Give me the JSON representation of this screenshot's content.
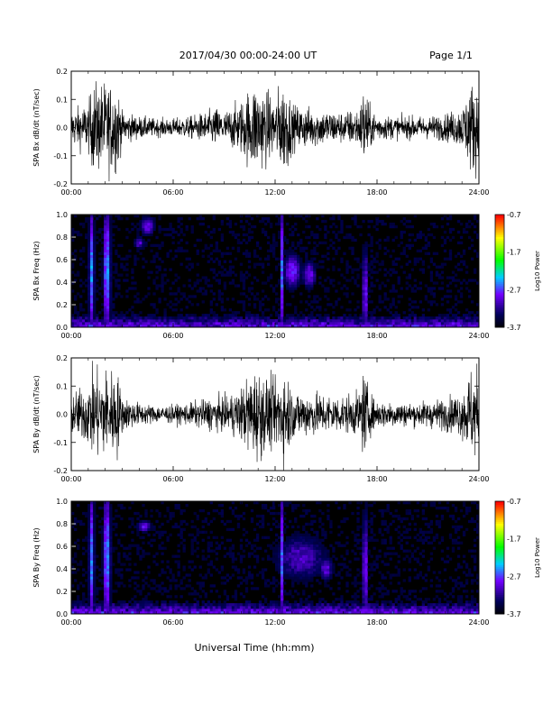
{
  "header": {
    "title": "2017/04/30  00:00-24:00 UT",
    "page": "Page 1/1"
  },
  "xaxis_label": "Universal Time (hh:mm)",
  "chart_data": [
    {
      "type": "line",
      "ylabel": "SPA Bx dB/dt (nT/sec)",
      "xlim": [
        "00:00",
        "24:00"
      ],
      "ylim": [
        -0.2,
        0.2
      ],
      "xticks": [
        "00:00",
        "06:00",
        "12:00",
        "18:00",
        "24:00"
      ],
      "yticks": [
        "0.2",
        "0.1",
        "0.0",
        "-0.1",
        "-0.2"
      ],
      "x_hours": [
        0,
        1,
        1.3,
        2,
        2.7,
        3,
        4,
        5,
        6,
        7,
        8,
        8.5,
        9,
        10,
        10.7,
        11,
        12,
        12.3,
        12.7,
        13,
        14,
        15,
        16,
        17,
        17.2,
        17.6,
        18,
        19,
        20,
        21,
        22,
        23,
        23.5,
        24
      ],
      "envelope": [
        0.08,
        0.11,
        0.2,
        0.2,
        0.2,
        0.07,
        0.05,
        0.04,
        0.04,
        0.05,
        0.07,
        0.09,
        0.07,
        0.12,
        0.2,
        0.2,
        0.13,
        0.2,
        0.2,
        0.1,
        0.09,
        0.08,
        0.07,
        0.09,
        0.2,
        0.09,
        0.06,
        0.05,
        0.05,
        0.05,
        0.06,
        0.09,
        0.2,
        0.2
      ]
    },
    {
      "type": "heatmap",
      "ylabel": "SPA Bx Freq (Hz)",
      "xlim": [
        "00:00",
        "24:00"
      ],
      "ylim": [
        0.0,
        1.0
      ],
      "xticks": [
        "00:00",
        "06:00",
        "12:00",
        "18:00",
        "24:00"
      ],
      "yticks": [
        "1.0",
        "0.8",
        "0.6",
        "0.4",
        "0.2",
        "0.0"
      ],
      "colorbar": {
        "label": "Log10 Power",
        "ticks": [
          "-0.7",
          "-1.7",
          "-2.7",
          "-3.7"
        ],
        "range": [
          -3.7,
          -0.7
        ]
      },
      "features": [
        {
          "t": 1.2,
          "f": 0.5,
          "dt": 0.15,
          "df": 0.6,
          "power": -2.5
        },
        {
          "t": 2.1,
          "f": 0.5,
          "dt": 0.2,
          "df": 0.6,
          "power": -2.4
        },
        {
          "t": 4.5,
          "f": 0.9,
          "dt": 0.4,
          "df": 0.08,
          "power": -2.8
        },
        {
          "t": 4.0,
          "f": 0.75,
          "dt": 0.3,
          "df": 0.05,
          "power": -2.9
        },
        {
          "t": 13.0,
          "f": 0.5,
          "dt": 0.5,
          "df": 0.15,
          "power": -2.7
        },
        {
          "t": 14.0,
          "f": 0.47,
          "dt": 0.4,
          "df": 0.12,
          "power": -2.8
        },
        {
          "t": 12.4,
          "f": 0.5,
          "dt": 0.08,
          "df": 0.6,
          "power": -2.6
        },
        {
          "t": 17.3,
          "f": 0.3,
          "dt": 0.15,
          "df": 0.4,
          "power": -2.7
        }
      ]
    },
    {
      "type": "line",
      "ylabel": "SPA By dB/dt (nT/sec)",
      "xlim": [
        "00:00",
        "24:00"
      ],
      "ylim": [
        -0.2,
        0.2
      ],
      "xticks": [
        "00:00",
        "06:00",
        "12:00",
        "18:00",
        "24:00"
      ],
      "yticks": [
        "0.2",
        "0.1",
        "0.0",
        "-0.1",
        "-0.2"
      ],
      "x_hours": [
        0,
        1,
        1.3,
        2,
        2.7,
        3,
        4,
        5,
        6,
        7,
        8,
        8.5,
        9,
        10,
        10.7,
        11,
        12,
        12.3,
        12.7,
        13,
        14,
        15,
        16,
        17,
        17.2,
        17.6,
        18,
        19,
        20,
        21,
        22,
        23,
        23.5,
        24
      ],
      "envelope": [
        0.09,
        0.14,
        0.2,
        0.2,
        0.2,
        0.08,
        0.05,
        0.04,
        0.04,
        0.05,
        0.07,
        0.08,
        0.07,
        0.12,
        0.2,
        0.2,
        0.14,
        0.2,
        0.2,
        0.11,
        0.1,
        0.09,
        0.08,
        0.1,
        0.2,
        0.09,
        0.06,
        0.06,
        0.05,
        0.06,
        0.07,
        0.1,
        0.2,
        0.2
      ]
    },
    {
      "type": "heatmap",
      "ylabel": "SPA By Freq (Hz)",
      "xlim": [
        "00:00",
        "24:00"
      ],
      "ylim": [
        0.0,
        1.0
      ],
      "xticks": [
        "00:00",
        "06:00",
        "12:00",
        "18:00",
        "24:00"
      ],
      "yticks": [
        "1.0",
        "0.8",
        "0.6",
        "0.4",
        "0.2",
        "0.0"
      ],
      "colorbar": {
        "label": "Log10 Power",
        "ticks": [
          "-0.7",
          "-1.7",
          "-2.7",
          "-3.7"
        ],
        "range": [
          -3.7,
          -0.7
        ]
      },
      "features": [
        {
          "t": 1.2,
          "f": 0.5,
          "dt": 0.15,
          "df": 0.6,
          "power": -2.5
        },
        {
          "t": 2.1,
          "f": 0.5,
          "dt": 0.2,
          "df": 0.6,
          "power": -2.4
        },
        {
          "t": 4.3,
          "f": 0.78,
          "dt": 0.4,
          "df": 0.05,
          "power": -2.8
        },
        {
          "t": 13.5,
          "f": 0.5,
          "dt": 1.5,
          "df": 0.2,
          "power": -3.0
        },
        {
          "t": 15.0,
          "f": 0.4,
          "dt": 0.4,
          "df": 0.1,
          "power": -2.9
        },
        {
          "t": 12.4,
          "f": 0.5,
          "dt": 0.08,
          "df": 0.6,
          "power": -2.6
        },
        {
          "t": 17.3,
          "f": 0.4,
          "dt": 0.15,
          "df": 0.5,
          "power": -2.7
        }
      ]
    }
  ]
}
